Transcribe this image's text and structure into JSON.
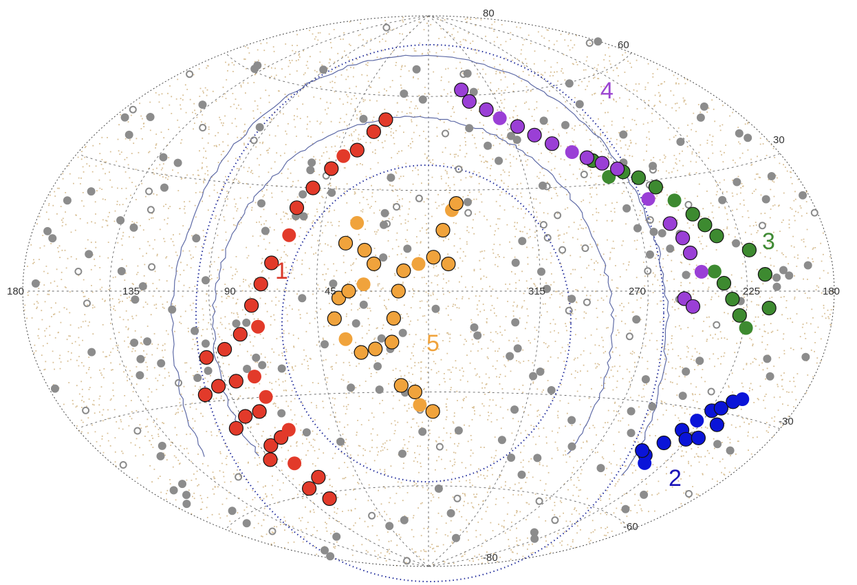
{
  "chart_data": {
    "type": "scatter",
    "projection": "aitoff-hammer",
    "grid": true,
    "legend": "none",
    "x_ticks": [
      "180",
      "135",
      "90",
      "45",
      "315",
      "270",
      "225",
      "180"
    ],
    "y_ticks": [
      "80",
      "60",
      "30",
      "-30",
      "-60",
      "-80"
    ],
    "group_labels": [
      {
        "text": "1",
        "color": "#d93a2b",
        "l": 75,
        "b": 5
      },
      {
        "text": "2",
        "color": "#1a12b8",
        "l": 242,
        "b": -46
      },
      {
        "text": "3",
        "color": "#3f8a34",
        "l": 200,
        "b": 12
      },
      {
        "text": "4",
        "color": "#9b45d1",
        "l": 320,
        "b": 55
      },
      {
        "text": "5",
        "color": "#f0a33c",
        "l": 0,
        "b": -18
      }
    ],
    "series": [
      {
        "key": "1",
        "color": "#e23a2a",
        "points": [
          [
            82,
            -58
          ],
          [
            75,
            -62
          ],
          [
            70,
            -55
          ],
          [
            78,
            -50
          ],
          [
            90,
            -48
          ],
          [
            84,
            -44
          ],
          [
            76,
            -42
          ],
          [
            70,
            -40
          ],
          [
            96,
            -38
          ],
          [
            88,
            -35
          ],
          [
            80,
            -34
          ],
          [
            74,
            -30
          ],
          [
            102,
            -28
          ],
          [
            94,
            -26
          ],
          [
            85,
            -25
          ],
          [
            76,
            -24
          ],
          [
            95,
            -18
          ],
          [
            86,
            -16
          ],
          [
            78,
            -12
          ],
          [
            70,
            -10
          ],
          [
            72,
            -4
          ],
          [
            68,
            2
          ],
          [
            64,
            8
          ],
          [
            58,
            16
          ],
          [
            57,
            24
          ],
          [
            52,
            30
          ],
          [
            46,
            36
          ],
          [
            42,
            40
          ],
          [
            36,
            42
          ],
          [
            30,
            48
          ],
          [
            25,
            52
          ]
        ]
      },
      {
        "key": "2",
        "color": "#0a14d8",
        "points": [
          [
            240,
            -44
          ],
          [
            236,
            -40
          ],
          [
            232,
            -36
          ],
          [
            228,
            -33
          ],
          [
            224,
            -30
          ],
          [
            220,
            -29
          ],
          [
            216,
            -27
          ],
          [
            212,
            -26
          ],
          [
            226,
            -38
          ],
          [
            220,
            -37
          ],
          [
            216,
            -33
          ],
          [
            236,
            -46
          ],
          [
            244,
            -43
          ]
        ]
      },
      {
        "key": "3",
        "color": "#3d8a30",
        "points": [
          [
            268,
            33
          ],
          [
            262,
            31
          ],
          [
            256,
            28
          ],
          [
            250,
            24
          ],
          [
            244,
            20
          ],
          [
            240,
            17
          ],
          [
            236,
            14
          ],
          [
            240,
            5
          ],
          [
            236,
            2
          ],
          [
            232,
            -2
          ],
          [
            228,
            -6
          ],
          [
            224,
            -9
          ],
          [
            222,
            10
          ],
          [
            216,
            4
          ],
          [
            214,
            -4
          ],
          [
            276,
            32
          ],
          [
            280,
            37
          ]
        ]
      },
      {
        "key": "4",
        "color": "#9a3fd6",
        "points": [
          [
            336,
            62
          ],
          [
            333,
            58
          ],
          [
            324,
            55
          ],
          [
            318,
            52
          ],
          [
            310,
            49
          ],
          [
            303,
            46
          ],
          [
            296,
            43
          ],
          [
            288,
            40
          ],
          [
            282,
            38
          ],
          [
            276,
            36
          ],
          [
            270,
            34
          ],
          [
            262,
            25
          ],
          [
            256,
            18
          ],
          [
            252,
            14
          ],
          [
            250,
            10
          ],
          [
            246,
            5
          ],
          [
            254,
            -2
          ],
          [
            250,
            -4
          ]
        ]
      },
      {
        "key": "5",
        "color": "#f0a33c",
        "points": [
          [
            15,
            -15
          ],
          [
            22,
            -17
          ],
          [
            28,
            -18
          ],
          [
            34,
            -14
          ],
          [
            38,
            -8
          ],
          [
            36,
            -2
          ],
          [
            32,
            0
          ],
          [
            26,
            2
          ],
          [
            22,
            8
          ],
          [
            26,
            12
          ],
          [
            34,
            14
          ],
          [
            30,
            20
          ],
          [
            14,
            -8
          ],
          [
            12,
            0
          ],
          [
            10,
            6
          ],
          [
            4,
            8
          ],
          [
            358,
            10
          ],
          [
            352,
            8
          ],
          [
            354,
            18
          ],
          [
            350,
            24
          ],
          [
            348,
            26
          ],
          [
            12,
            -28
          ],
          [
            6,
            -30
          ],
          [
            4,
            -34
          ],
          [
            358,
            -36
          ]
        ]
      }
    ]
  }
}
